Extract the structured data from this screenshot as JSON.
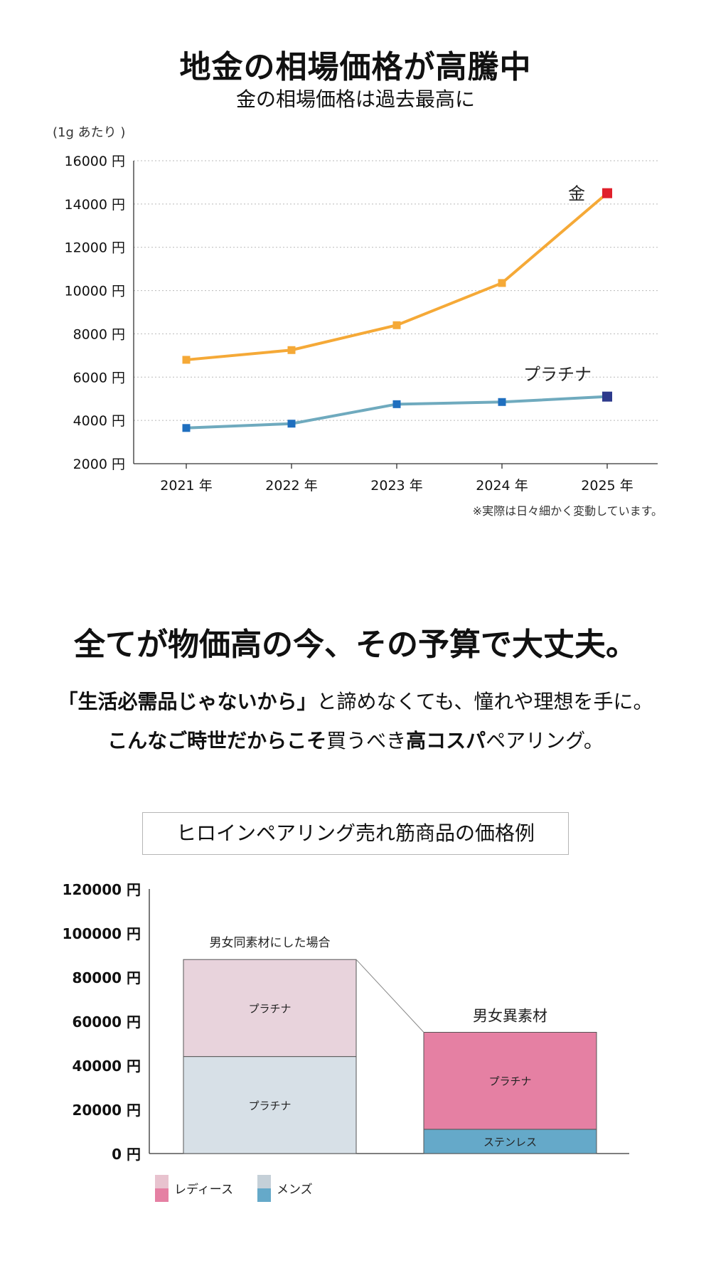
{
  "header": {
    "title": "地金の相場価格が高騰中",
    "subtitle": "金の相場価格は過去最高に"
  },
  "chart_data": [
    {
      "type": "line",
      "unit_note": "(1g あたり )",
      "categories": [
        "2021 年",
        "2022 年",
        "2023 年",
        "2024 年",
        "2025 年"
      ],
      "ylim": [
        2000,
        16000
      ],
      "yticks": [
        2000,
        4000,
        6000,
        8000,
        10000,
        12000,
        14000,
        16000
      ],
      "ytick_labels": [
        "2000 円",
        "4000 円",
        "6000 円",
        "8000 円",
        "10000 円",
        "12000 円",
        "14000 円",
        "16000 円"
      ],
      "grid": true,
      "series": [
        {
          "name": "金",
          "values": [
            6800,
            7250,
            8400,
            10350,
            14500
          ],
          "color": "#f5a937",
          "last_marker_color": "#e0202b"
        },
        {
          "name": "プラチナ",
          "values": [
            3650,
            3850,
            4750,
            4850,
            5100
          ],
          "color": "#6faabe",
          "marker_color": "#1f6fbf",
          "last_marker_color": "#2d3a8c"
        }
      ],
      "footnote": "※実際は日々細かく変動しています。"
    },
    {
      "type": "bar",
      "title": "ヒロインペアリング売れ筋商品の価格例",
      "stacked": true,
      "ylim": [
        0,
        120000
      ],
      "yticks": [
        0,
        20000,
        40000,
        60000,
        80000,
        100000,
        120000
      ],
      "ytick_labels": [
        "0 円",
        "20000 円",
        "40000 円",
        "60000 円",
        "80000 円",
        "100000 円",
        "120000 円"
      ],
      "bars": [
        {
          "label": "男女同素材にした場合",
          "segments": [
            {
              "group": "メンズ",
              "label": "プラチナ",
              "value": 44000,
              "color": "#d7e0e7"
            },
            {
              "group": "レディース",
              "label": "プラチナ",
              "value": 44000,
              "color": "#e8d3dc"
            }
          ]
        },
        {
          "label": "男女異素材",
          "segments": [
            {
              "group": "メンズ",
              "label": "ステンレス",
              "value": 11000,
              "color": "#65a9c9"
            },
            {
              "group": "レディース",
              "label": "プラチナ",
              "value": 44000,
              "color": "#e580a3"
            }
          ]
        }
      ],
      "legend": [
        {
          "name": "レディース",
          "colors": [
            "#e8c3cf",
            "#e580a3"
          ]
        },
        {
          "name": "メンズ",
          "colors": [
            "#c5d0d8",
            "#65a9c9"
          ]
        }
      ]
    }
  ],
  "message": {
    "headline": "全てが物価高の今、その予算で大丈夫。",
    "line1_bold": "「生活必需品じゃないから」",
    "line1_rest": "と諦めなくても、憧れや理想を手に。",
    "line2_bold1": "こんなご時世だからこそ",
    "line2_mid": "買うべき",
    "line2_bold2": "高コスパ",
    "line2_rest": "ペアリング。"
  }
}
